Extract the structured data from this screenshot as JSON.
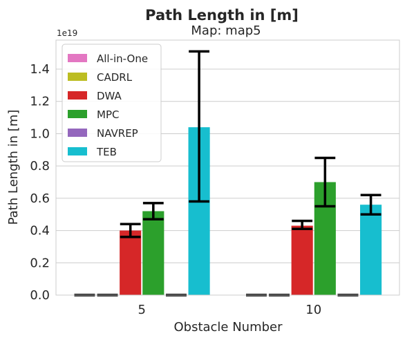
{
  "chart_data": {
    "type": "bar",
    "title": "Path Length in [m]",
    "subtitle": "Map: map5",
    "xlabel": "Obstacle Number",
    "ylabel": "Path Length in [m]",
    "y_offset_label": "1e19",
    "ylim": [
      0,
      1.58
    ],
    "yticks": [
      "0.0",
      "0.2",
      "0.4",
      "0.6",
      "0.8",
      "1.0",
      "1.2",
      "1.4"
    ],
    "grid": "y",
    "legend_position": "top-left",
    "categories": [
      "5",
      "10"
    ],
    "series": [
      {
        "name": "All-in-One",
        "color": "#e377c2",
        "values": [
          0,
          0
        ],
        "err_low": [
          0,
          0
        ],
        "err_high": [
          0,
          0
        ]
      },
      {
        "name": "CADRL",
        "color": "#bcbd22",
        "values": [
          0,
          0
        ],
        "err_low": [
          0,
          0
        ],
        "err_high": [
          0,
          0
        ]
      },
      {
        "name": "DWA",
        "color": "#d62728",
        "values": [
          0.4,
          0.43
        ],
        "err_low": [
          0.36,
          0.41
        ],
        "err_high": [
          0.44,
          0.46
        ]
      },
      {
        "name": "MPC",
        "color": "#2ca02c",
        "values": [
          0.52,
          0.7
        ],
        "err_low": [
          0.47,
          0.55
        ],
        "err_high": [
          0.57,
          0.85
        ]
      },
      {
        "name": "NAVREP",
        "color": "#9467bd",
        "values": [
          0,
          0
        ],
        "err_low": [
          0,
          0
        ],
        "err_high": [
          0,
          0
        ]
      },
      {
        "name": "TEB",
        "color": "#17becf",
        "values": [
          1.04,
          0.56
        ],
        "err_low": [
          0.58,
          0.5
        ],
        "err_high": [
          1.51,
          0.62
        ]
      }
    ]
  }
}
